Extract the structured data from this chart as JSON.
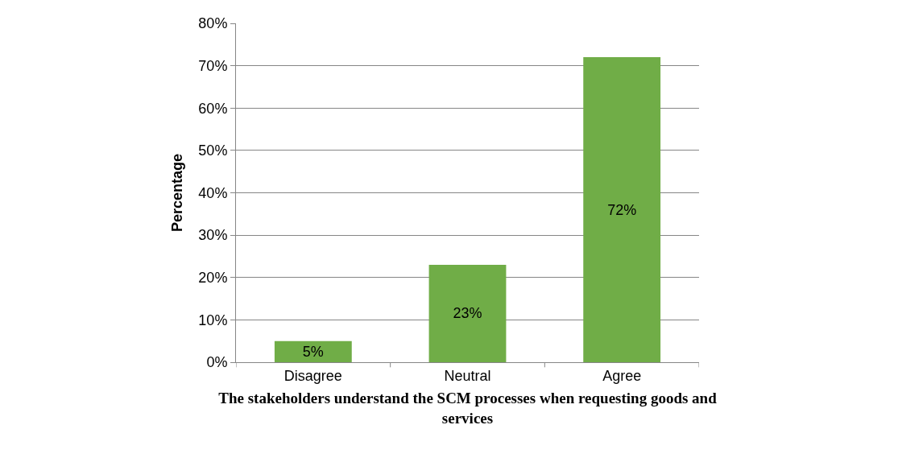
{
  "chart_data": {
    "type": "bar",
    "xlabel": "The stakeholders understand the SCM processes when requesting goods and services",
    "ylabel": "Percentage",
    "categories": [
      "Disagree",
      "Neutral",
      "Agree"
    ],
    "values": [
      5,
      23,
      72
    ],
    "color": "#70ad47",
    "data_labels": true,
    "value_labels": [
      "5%",
      "23%",
      "72%"
    ],
    "ylim": [
      0,
      80
    ],
    "yticks": [
      {
        "value": 0,
        "label": "0%"
      },
      {
        "value": 10,
        "label": "10%"
      },
      {
        "value": 20,
        "label": "20%"
      },
      {
        "value": 30,
        "label": "30%"
      },
      {
        "value": 40,
        "label": "40%"
      },
      {
        "value": 50,
        "label": "50%"
      },
      {
        "value": 60,
        "label": "60%"
      },
      {
        "value": 70,
        "label": "70%"
      },
      {
        "value": 80,
        "label": "80%"
      }
    ],
    "grid": "y"
  }
}
